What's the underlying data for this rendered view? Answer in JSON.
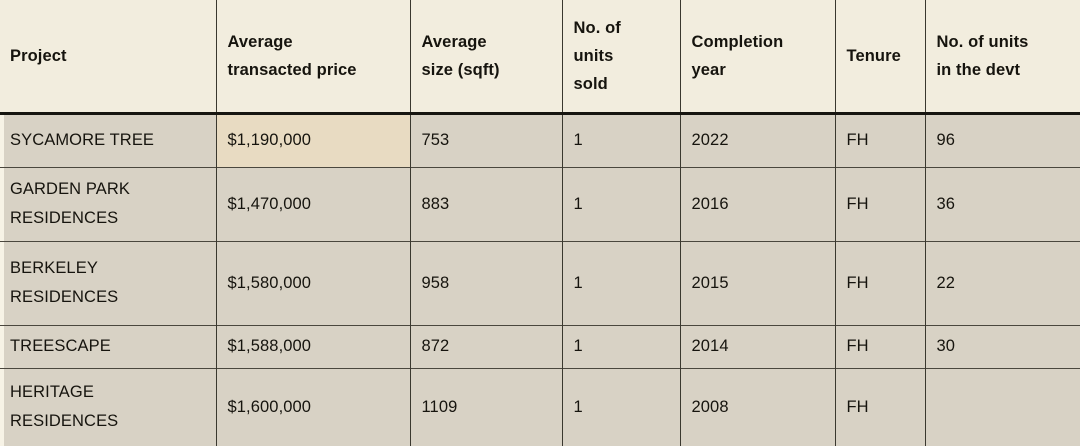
{
  "chart_data": {
    "type": "table",
    "columns": [
      "Project",
      "Average\ntransacted price",
      "Average\nsize (sqft)",
      "No. of\nunits\nsold",
      "Completion\nyear",
      "Tenure",
      "No. of units\nin the devt"
    ],
    "rows": [
      {
        "cells": [
          "SYCAMORE TREE",
          "$1,190,000",
          "753",
          "1",
          "2022",
          "FH",
          "96"
        ]
      },
      {
        "cells": [
          "GARDEN PARK\nRESIDENCES",
          "$1,470,000",
          "883",
          "1",
          "2016",
          "FH",
          "36"
        ]
      },
      {
        "cells": [
          "BERKELEY\nRESIDENCES",
          "$1,580,000",
          "958",
          "1",
          "2015",
          "FH",
          "22"
        ]
      },
      {
        "cells": [
          "TREESCAPE",
          "$1,588,000",
          "872",
          "1",
          "2014",
          "FH",
          "30"
        ]
      },
      {
        "cells": [
          "HERITAGE\nRESIDENCES",
          "$1,600,000",
          "1109",
          "1",
          "2008",
          "FH",
          ""
        ]
      }
    ],
    "highlighted_cell": {
      "row": 0,
      "column": 1
    },
    "layout": {
      "grid": "all internal borders",
      "legend": "none",
      "title": ""
    }
  },
  "colors": {
    "header_bg": "#f2edde",
    "row_bg": "#d8d2c5",
    "highlight_bg": "#e8dbc2",
    "page_bg": "#f7f3e6",
    "border": "#3a382f",
    "header_divider": "#161510",
    "text": "#16140e"
  }
}
